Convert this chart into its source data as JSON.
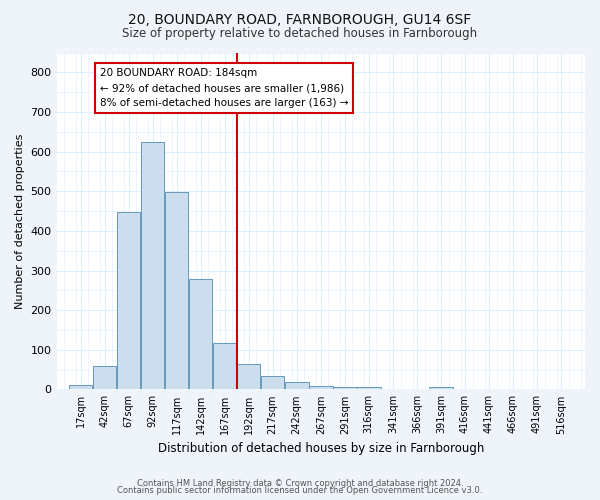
{
  "title_line1": "20, BOUNDARY ROAD, FARNBOROUGH, GU14 6SF",
  "title_line2": "Size of property relative to detached houses in Farnborough",
  "xlabel": "Distribution of detached houses by size in Farnborough",
  "ylabel": "Number of detached properties",
  "footer_line1": "Contains HM Land Registry data © Crown copyright and database right 2024.",
  "footer_line2": "Contains public sector information licensed under the Open Government Licence v3.0.",
  "bin_labels": [
    "17sqm",
    "42sqm",
    "67sqm",
    "92sqm",
    "117sqm",
    "142sqm",
    "167sqm",
    "192sqm",
    "217sqm",
    "242sqm",
    "267sqm",
    "291sqm",
    "316sqm",
    "341sqm",
    "366sqm",
    "391sqm",
    "416sqm",
    "441sqm",
    "466sqm",
    "491sqm",
    "516sqm"
  ],
  "bar_values": [
    10,
    58,
    447,
    625,
    498,
    278,
    116,
    65,
    35,
    20,
    8,
    5,
    5,
    0,
    0,
    5,
    0,
    0,
    0,
    0,
    0
  ],
  "bar_color": "#ccdded",
  "bar_edge_color": "#6699bb",
  "vline_x_index": 7,
  "vline_color": "#cc0000",
  "annotation_text": "20 BOUNDARY ROAD: 184sqm\n← 92% of detached houses are smaller (1,986)\n8% of semi-detached houses are larger (163) →",
  "annotation_box_color": "#ffffff",
  "annotation_box_edge_color": "#cc0000",
  "ylim": [
    0,
    850
  ],
  "yticks": [
    0,
    100,
    200,
    300,
    400,
    500,
    600,
    700,
    800
  ],
  "grid_color": "#ddeeff",
  "plot_bg_color": "#ffffff",
  "fig_bg_color": "#eef4fa",
  "figsize": [
    6.0,
    5.0
  ],
  "dpi": 100
}
